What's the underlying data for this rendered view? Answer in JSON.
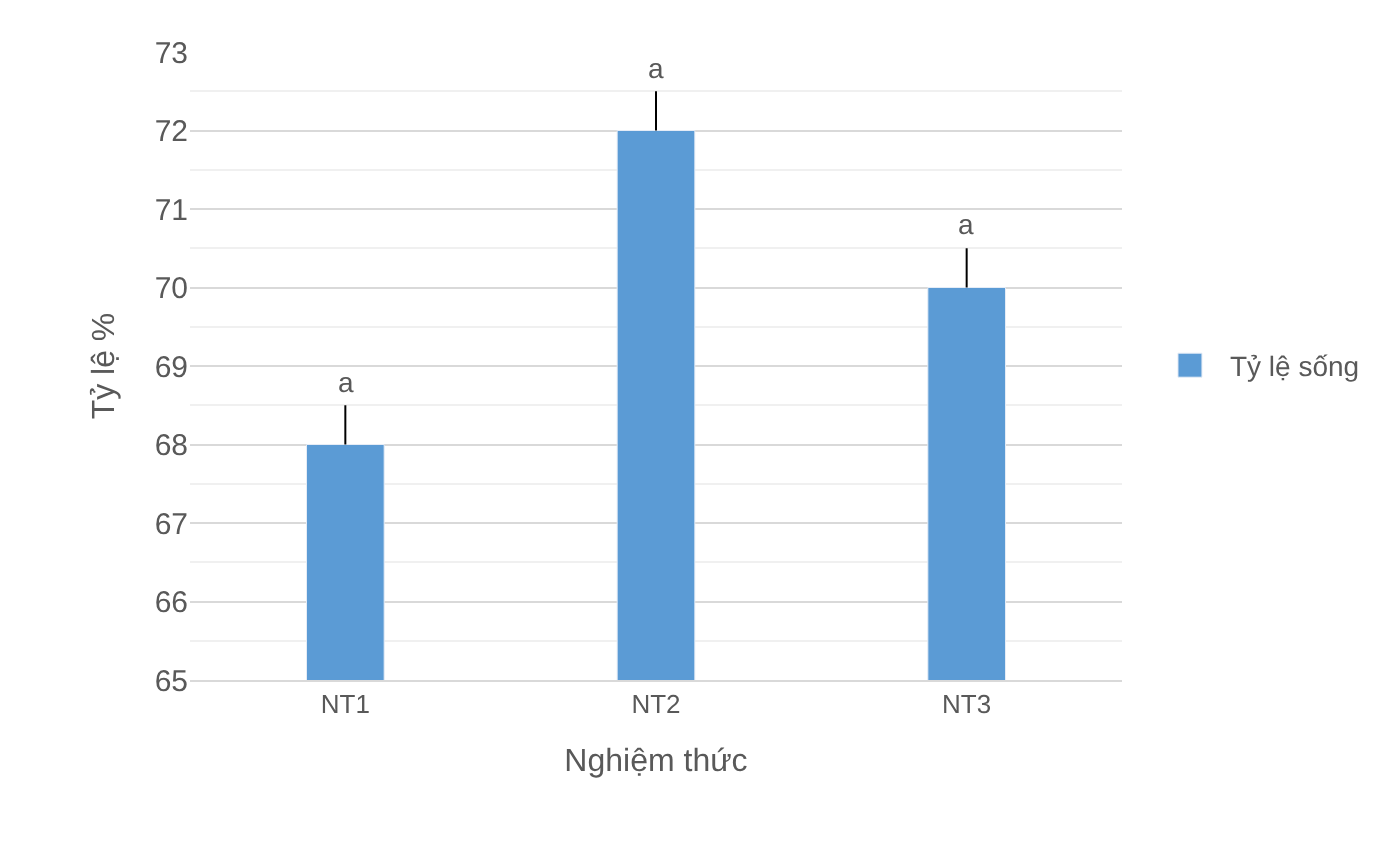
{
  "chart_data": {
    "type": "bar",
    "xlabel": "Nghiệm thức",
    "ylabel": "Tỷ lệ %",
    "categories": [
      "NT1",
      "NT2",
      "NT3"
    ],
    "series": [
      {
        "name": "Tỷ lệ sống",
        "color": "#5b9bd5",
        "values": [
          68,
          72,
          70
        ],
        "errors": [
          [
            68,
            68.5
          ],
          [
            72,
            72.5
          ],
          [
            70,
            70.5
          ]
        ]
      }
    ],
    "annotations": [
      {
        "text": "a",
        "x": "NT1",
        "y": 68.5
      },
      {
        "text": "a",
        "x": "NT2",
        "y": 72.5
      },
      {
        "text": "a",
        "x": "NT3",
        "y": 70.5
      }
    ],
    "ylim": [
      65,
      73
    ],
    "yticks": [
      65,
      66,
      67,
      68,
      69,
      70,
      71,
      72,
      73
    ],
    "grid": "y",
    "legend": "right"
  }
}
